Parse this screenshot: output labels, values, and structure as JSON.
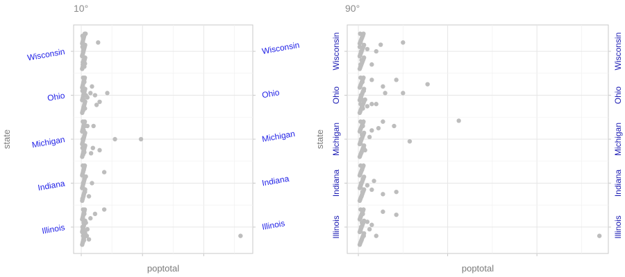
{
  "chart_data": [
    {
      "type": "scatter",
      "title": "10°",
      "xlabel": "poptotal",
      "ylabel": "state",
      "categories": [
        "Illinois",
        "Indiana",
        "Michigan",
        "Ohio",
        "Wisconsin"
      ],
      "label_color": "#1f1fe6",
      "label_angle": 10,
      "point_color": "#bdbdbd",
      "grid": true,
      "x_ticks_labeled": false,
      "points": [
        {
          "x": 0.14,
          "y": 4.4
        },
        {
          "x": 0.06,
          "y": 4.3
        },
        {
          "x": 0.05,
          "y": 4.2
        },
        {
          "x": 0.04,
          "y": 4.1
        },
        {
          "x": 0.06,
          "y": 4.0
        },
        {
          "x": 0.03,
          "y": 3.9
        },
        {
          "x": 0.08,
          "y": 3.8
        },
        {
          "x": 0.05,
          "y": 3.7
        },
        {
          "x": 0.1,
          "y": 3.65
        },
        {
          "x": 0.04,
          "y": 4.35
        },
        {
          "x": 0.07,
          "y": 4.05
        },
        {
          "x": 0.05,
          "y": 3.75
        },
        {
          "x": 0.12,
          "y": 3.72
        },
        {
          "x": 0.55,
          "y": 4.2
        },
        {
          "x": 0.06,
          "y": 3.4
        },
        {
          "x": 0.1,
          "y": 3.3
        },
        {
          "x": 0.05,
          "y": 3.2
        },
        {
          "x": 0.15,
          "y": 3.0
        },
        {
          "x": 0.04,
          "y": 3.1
        },
        {
          "x": 0.08,
          "y": 2.9
        },
        {
          "x": 0.2,
          "y": 2.95
        },
        {
          "x": 0.12,
          "y": 2.7
        },
        {
          "x": 0.06,
          "y": 2.65
        },
        {
          "x": 0.3,
          "y": 3.05
        },
        {
          "x": 0.45,
          "y": 3.0
        },
        {
          "x": 0.85,
          "y": 3.05
        },
        {
          "x": 0.6,
          "y": 2.85
        },
        {
          "x": 0.35,
          "y": 3.2
        },
        {
          "x": 0.5,
          "y": 2.78
        },
        {
          "x": 0.05,
          "y": 2.4
        },
        {
          "x": 0.12,
          "y": 2.3
        },
        {
          "x": 0.08,
          "y": 2.2
        },
        {
          "x": 0.2,
          "y": 2.3
        },
        {
          "x": 0.05,
          "y": 2.0
        },
        {
          "x": 0.04,
          "y": 1.8
        },
        {
          "x": 0.1,
          "y": 1.7
        },
        {
          "x": 0.06,
          "y": 1.65
        },
        {
          "x": 0.4,
          "y": 2.3
        },
        {
          "x": 1.1,
          "y": 2.0
        },
        {
          "x": 0.38,
          "y": 1.8
        },
        {
          "x": 0.6,
          "y": 1.75
        },
        {
          "x": 0.32,
          "y": 1.68
        },
        {
          "x": 1.95,
          "y": 2.0
        },
        {
          "x": 0.05,
          "y": 1.4
        },
        {
          "x": 0.08,
          "y": 1.3
        },
        {
          "x": 0.04,
          "y": 1.2
        },
        {
          "x": 0.1,
          "y": 1.1
        },
        {
          "x": 0.06,
          "y": 1.0
        },
        {
          "x": 0.05,
          "y": 0.9
        },
        {
          "x": 0.12,
          "y": 0.8
        },
        {
          "x": 0.07,
          "y": 0.7
        },
        {
          "x": 0.04,
          "y": 0.65
        },
        {
          "x": 0.35,
          "y": 1.0
        },
        {
          "x": 0.25,
          "y": 0.7
        },
        {
          "x": 0.75,
          "y": 1.25
        },
        {
          "x": 0.15,
          "y": 1.15
        },
        {
          "x": 0.06,
          "y": 0.4
        },
        {
          "x": 0.1,
          "y": 0.3
        },
        {
          "x": 0.05,
          "y": 0.2
        },
        {
          "x": 0.08,
          "y": 0.1
        },
        {
          "x": 0.04,
          "y": 0.0
        },
        {
          "x": 0.12,
          "y": -0.1
        },
        {
          "x": 0.06,
          "y": -0.2
        },
        {
          "x": 0.09,
          "y": -0.3
        },
        {
          "x": 0.05,
          "y": -0.35
        },
        {
          "x": 0.45,
          "y": 0.3
        },
        {
          "x": 0.75,
          "y": 0.4
        },
        {
          "x": 0.3,
          "y": 0.2
        },
        {
          "x": 0.2,
          "y": -0.05
        },
        {
          "x": 0.15,
          "y": 0.1
        },
        {
          "x": 0.18,
          "y": -0.2
        },
        {
          "x": 0.25,
          "y": -0.28
        },
        {
          "x": 5.2,
          "y": -0.2
        }
      ]
    },
    {
      "type": "scatter",
      "title": "90°",
      "xlabel": "poptotal",
      "ylabel": "state",
      "categories": [
        "Illinois",
        "Indiana",
        "Michigan",
        "Ohio",
        "Wisconsin"
      ],
      "label_color": "#1a1ab3",
      "label_angle": 90,
      "point_color": "#bdbdbd",
      "grid": true,
      "x_ticks_labeled": false,
      "points": [
        {
          "x": 0.04,
          "y": 4.4
        },
        {
          "x": 0.08,
          "y": 4.3
        },
        {
          "x": 0.05,
          "y": 4.2
        },
        {
          "x": 0.03,
          "y": 4.1
        },
        {
          "x": 0.06,
          "y": 4.0
        },
        {
          "x": 0.04,
          "y": 3.9
        },
        {
          "x": 0.07,
          "y": 3.8
        },
        {
          "x": 0.05,
          "y": 3.7
        },
        {
          "x": 0.2,
          "y": 4.05
        },
        {
          "x": 0.5,
          "y": 4.15
        },
        {
          "x": 1.0,
          "y": 4.2
        },
        {
          "x": 0.4,
          "y": 4.0
        },
        {
          "x": 0.3,
          "y": 3.7
        },
        {
          "x": 0.1,
          "y": 4.35
        },
        {
          "x": 0.05,
          "y": 3.4
        },
        {
          "x": 0.09,
          "y": 3.3
        },
        {
          "x": 0.04,
          "y": 3.2
        },
        {
          "x": 0.12,
          "y": 3.1
        },
        {
          "x": 0.06,
          "y": 3.0
        },
        {
          "x": 0.08,
          "y": 2.9
        },
        {
          "x": 0.05,
          "y": 2.8
        },
        {
          "x": 0.1,
          "y": 2.7
        },
        {
          "x": 0.3,
          "y": 3.35
        },
        {
          "x": 0.55,
          "y": 3.2
        },
        {
          "x": 0.85,
          "y": 3.35
        },
        {
          "x": 1.0,
          "y": 3.05
        },
        {
          "x": 1.55,
          "y": 3.25
        },
        {
          "x": 0.6,
          "y": 3.05
        },
        {
          "x": 0.4,
          "y": 2.8
        },
        {
          "x": 0.3,
          "y": 2.8
        },
        {
          "x": 0.2,
          "y": 2.75
        },
        {
          "x": 0.15,
          "y": 2.9
        },
        {
          "x": 0.05,
          "y": 2.4
        },
        {
          "x": 0.1,
          "y": 2.3
        },
        {
          "x": 0.04,
          "y": 2.2
        },
        {
          "x": 0.08,
          "y": 2.1
        },
        {
          "x": 0.06,
          "y": 2.0
        },
        {
          "x": 0.05,
          "y": 1.9
        },
        {
          "x": 0.12,
          "y": 1.8
        },
        {
          "x": 0.07,
          "y": 1.7
        },
        {
          "x": 0.55,
          "y": 2.4
        },
        {
          "x": 0.8,
          "y": 2.3
        },
        {
          "x": 0.45,
          "y": 2.25
        },
        {
          "x": 0.3,
          "y": 2.2
        },
        {
          "x": 2.25,
          "y": 2.42
        },
        {
          "x": 1.15,
          "y": 1.95
        },
        {
          "x": 0.25,
          "y": 2.05
        },
        {
          "x": 0.15,
          "y": 1.75
        },
        {
          "x": 0.05,
          "y": 1.4
        },
        {
          "x": 0.08,
          "y": 1.3
        },
        {
          "x": 0.04,
          "y": 1.2
        },
        {
          "x": 0.1,
          "y": 1.1
        },
        {
          "x": 0.06,
          "y": 1.0
        },
        {
          "x": 0.05,
          "y": 0.9
        },
        {
          "x": 0.09,
          "y": 0.8
        },
        {
          "x": 0.07,
          "y": 0.7
        },
        {
          "x": 0.35,
          "y": 1.05
        },
        {
          "x": 0.3,
          "y": 0.85
        },
        {
          "x": 0.85,
          "y": 0.8
        },
        {
          "x": 0.55,
          "y": 0.75
        },
        {
          "x": 0.2,
          "y": 0.95
        },
        {
          "x": 0.05,
          "y": 0.4
        },
        {
          "x": 0.1,
          "y": 0.3
        },
        {
          "x": 0.04,
          "y": 0.2
        },
        {
          "x": 0.08,
          "y": 0.1
        },
        {
          "x": 0.06,
          "y": 0.0
        },
        {
          "x": 0.05,
          "y": -0.1
        },
        {
          "x": 0.12,
          "y": -0.2
        },
        {
          "x": 0.07,
          "y": -0.3
        },
        {
          "x": 0.55,
          "y": 0.35
        },
        {
          "x": 0.85,
          "y": 0.28
        },
        {
          "x": 0.3,
          "y": 0.05
        },
        {
          "x": 0.2,
          "y": 0.12
        },
        {
          "x": 0.4,
          "y": -0.2
        },
        {
          "x": 0.25,
          "y": -0.05
        },
        {
          "x": 5.4,
          "y": -0.2
        }
      ]
    }
  ]
}
